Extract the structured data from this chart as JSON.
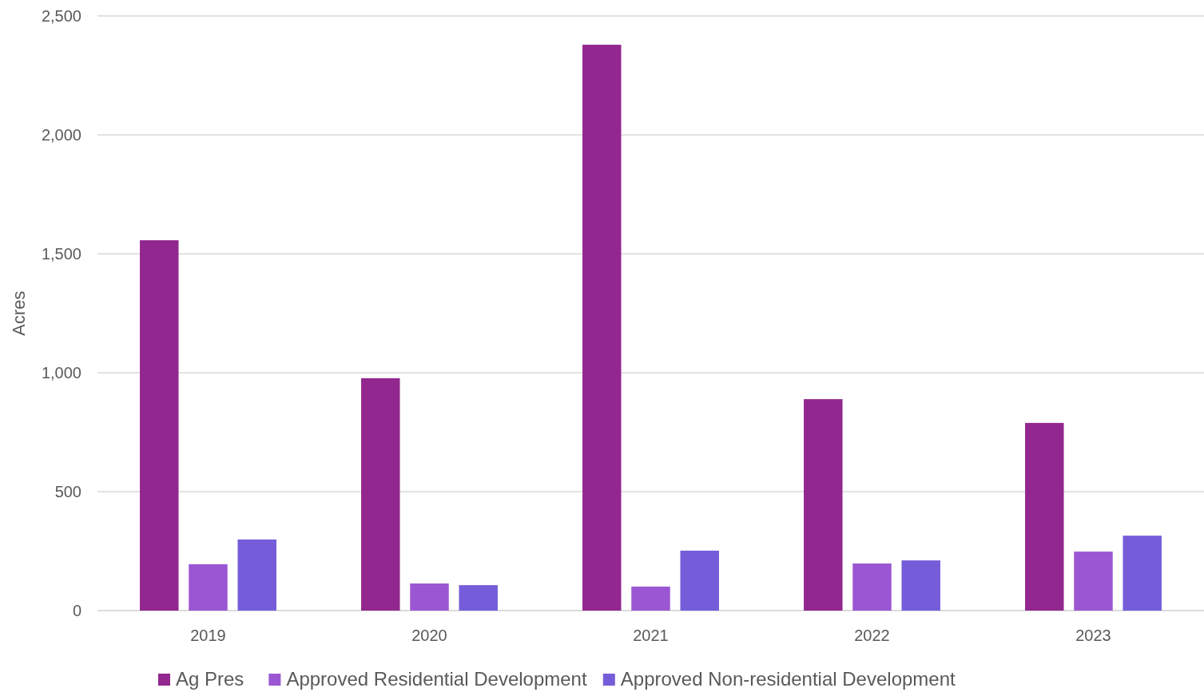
{
  "chart_data": {
    "type": "bar",
    "ylabel": "Acres",
    "categories": [
      "2019",
      "2020",
      "2021",
      "2022",
      "2023"
    ],
    "series": [
      {
        "name": "Ag Pres",
        "color": "#92278f",
        "values": [
          1557,
          977,
          2379,
          889,
          789
        ]
      },
      {
        "name": "Approved Residential Development",
        "color": "#9b57d3",
        "values": [
          195,
          114,
          101,
          198,
          248
        ]
      },
      {
        "name": "Approved Non-residential Development",
        "color": "#755dd9",
        "values": [
          299,
          107,
          252,
          211,
          315
        ]
      }
    ],
    "ylim": [
      0,
      2500
    ],
    "yticks": [
      {
        "value": 0,
        "label": "0"
      },
      {
        "value": 500,
        "label": "500"
      },
      {
        "value": 1000,
        "label": "1,000"
      },
      {
        "value": 1500,
        "label": "1,500"
      },
      {
        "value": 2000,
        "label": "2,000"
      },
      {
        "value": 2500,
        "label": "2,500"
      }
    ],
    "grid": "y",
    "legend": "bottom"
  }
}
